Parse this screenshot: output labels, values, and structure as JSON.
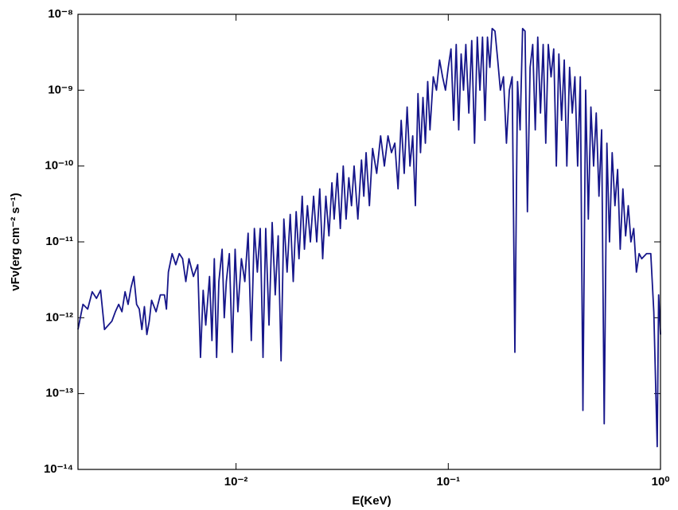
{
  "chart_data": {
    "type": "line",
    "xlabel": "E(KeV)",
    "ylabel": "νFν(erg cm⁻² s⁻¹)",
    "xscale": "log",
    "yscale": "log",
    "grid": false,
    "xlim": [
      0.0018,
      1.0
    ],
    "ylim": [
      1e-14,
      1e-08
    ],
    "xticks": [
      {
        "value": 0.01,
        "label": "10⁻²"
      },
      {
        "value": 0.1,
        "label": "10⁻¹"
      },
      {
        "value": 1,
        "label": "10⁰"
      }
    ],
    "yticks": [
      {
        "value": 1e-14,
        "label": "10⁻¹⁴"
      },
      {
        "value": 1e-13,
        "label": "10⁻¹³"
      },
      {
        "value": 1e-12,
        "label": "10⁻¹²"
      },
      {
        "value": 1e-11,
        "label": "10⁻¹¹"
      },
      {
        "value": 1e-10,
        "label": "10⁻¹⁰"
      },
      {
        "value": 1e-09,
        "label": "10⁻⁹"
      },
      {
        "value": 1e-08,
        "label": "10⁻⁸"
      }
    ],
    "x": [
      0.0018,
      0.0019,
      0.002,
      0.0021,
      0.0022,
      0.0023,
      0.0024,
      0.0026,
      0.0027,
      0.0028,
      0.0029,
      0.003,
      0.0031,
      0.0032,
      0.0033,
      0.0034,
      0.0035,
      0.0036,
      0.0037,
      0.0038,
      0.0039,
      0.004,
      0.0042,
      0.0044,
      0.0046,
      0.0047,
      0.0048,
      0.005,
      0.0052,
      0.0054,
      0.0056,
      0.0058,
      0.006,
      0.0063,
      0.0066,
      0.0068,
      0.007,
      0.0072,
      0.0075,
      0.0077,
      0.0079,
      0.0081,
      0.0083,
      0.0086,
      0.0088,
      0.009,
      0.0093,
      0.0096,
      0.0099,
      0.0102,
      0.0106,
      0.011,
      0.0114,
      0.0118,
      0.0122,
      0.0126,
      0.013,
      0.0134,
      0.0138,
      0.0143,
      0.0148,
      0.0153,
      0.0158,
      0.0163,
      0.0168,
      0.0174,
      0.018,
      0.0186,
      0.0192,
      0.0198,
      0.0205,
      0.021,
      0.0217,
      0.0224,
      0.0232,
      0.024,
      0.0248,
      0.0256,
      0.0265,
      0.0274,
      0.0283,
      0.029,
      0.03,
      0.031,
      0.032,
      0.033,
      0.034,
      0.035,
      0.036,
      0.0375,
      0.039,
      0.04,
      0.041,
      0.0425,
      0.044,
      0.046,
      0.048,
      0.05,
      0.052,
      0.054,
      0.056,
      0.058,
      0.06,
      0.062,
      0.064,
      0.066,
      0.068,
      0.07,
      0.072,
      0.074,
      0.076,
      0.078,
      0.08,
      0.082,
      0.085,
      0.088,
      0.091,
      0.094,
      0.097,
      0.1,
      0.103,
      0.106,
      0.109,
      0.112,
      0.115,
      0.118,
      0.121,
      0.125,
      0.129,
      0.133,
      0.137,
      0.141,
      0.145,
      0.149,
      0.153,
      0.157,
      0.161,
      0.166,
      0.171,
      0.176,
      0.182,
      0.188,
      0.194,
      0.2,
      0.206,
      0.212,
      0.218,
      0.224,
      0.23,
      0.236,
      0.243,
      0.25,
      0.257,
      0.264,
      0.272,
      0.28,
      0.288,
      0.296,
      0.305,
      0.314,
      0.323,
      0.332,
      0.342,
      0.352,
      0.362,
      0.373,
      0.384,
      0.395,
      0.407,
      0.419,
      0.431,
      0.444,
      0.457,
      0.47,
      0.484,
      0.498,
      0.513,
      0.528,
      0.543,
      0.559,
      0.575,
      0.592,
      0.61,
      0.628,
      0.646,
      0.665,
      0.685,
      0.705,
      0.726,
      0.748,
      0.77,
      0.793,
      0.816,
      0.86,
      0.9,
      0.93,
      0.965,
      0.98,
      1.0
    ],
    "series": [
      {
        "color": "#16168a",
        "values": [
          7e-13,
          1.5e-12,
          1.3e-12,
          2.2e-12,
          1.8e-12,
          2.3e-12,
          7e-13,
          9e-13,
          1.2e-12,
          1.5e-12,
          1.2e-12,
          2.2e-12,
          1.5e-12,
          2.5e-12,
          3.5e-12,
          1.5e-12,
          1.3e-12,
          7e-13,
          1.4e-12,
          6e-13,
          9e-13,
          1.7e-12,
          1.2e-12,
          2e-12,
          2e-12,
          1.3e-12,
          4e-12,
          7e-12,
          5e-12,
          7e-12,
          6e-12,
          3e-12,
          6e-12,
          3.5e-12,
          5e-12,
          3e-13,
          2.3e-12,
          8e-13,
          3.5e-12,
          5e-13,
          6e-12,
          3e-13,
          3e-12,
          8e-12,
          1e-12,
          3e-12,
          7e-12,
          3.5e-13,
          8e-12,
          1.2e-12,
          6e-12,
          3e-12,
          1.3e-11,
          5e-13,
          1.5e-11,
          4e-12,
          1.5e-11,
          3e-13,
          1.5e-11,
          8e-13,
          1.8e-11,
          2e-12,
          1.2e-11,
          2.7e-13,
          2e-11,
          4e-12,
          2.3e-11,
          3e-12,
          2.5e-11,
          6e-12,
          4e-11,
          8e-12,
          3e-11,
          1e-11,
          4e-11,
          1e-11,
          5e-11,
          6e-12,
          4e-11,
          1.2e-11,
          6e-11,
          2e-11,
          8e-11,
          1.5e-11,
          1e-10,
          2e-11,
          7e-11,
          3e-11,
          1e-10,
          2e-11,
          1.2e-10,
          4e-11,
          1.5e-10,
          3e-11,
          1.7e-10,
          8e-11,
          2.5e-10,
          1e-10,
          2.5e-10,
          1.5e-10,
          2e-10,
          5e-11,
          4e-10,
          8e-11,
          6e-10,
          1e-10,
          2.5e-10,
          3e-11,
          9e-10,
          1.5e-10,
          8e-10,
          2e-10,
          1.3e-09,
          3e-10,
          1.5e-09,
          1e-09,
          2.5e-09,
          1.5e-09,
          1e-09,
          2e-09,
          3.5e-09,
          4e-10,
          4e-09,
          3e-10,
          3e-09,
          1e-09,
          4e-09,
          5e-10,
          4.5e-09,
          2e-10,
          5e-09,
          1e-09,
          5e-09,
          4e-10,
          5e-09,
          2e-09,
          6.5e-09,
          6e-09,
          2.5e-09,
          1e-09,
          1.5e-09,
          2e-10,
          1e-09,
          1.5e-09,
          3.5e-13,
          1.3e-09,
          3e-10,
          6.5e-09,
          6e-09,
          2.5e-11,
          2e-09,
          4e-09,
          3e-10,
          5e-09,
          5e-10,
          4e-09,
          2e-10,
          4e-09,
          1.5e-09,
          3.5e-09,
          1e-10,
          3e-09,
          4e-10,
          2.5e-09,
          1e-10,
          2e-09,
          5e-10,
          1.5e-09,
          1e-10,
          1.5e-09,
          6e-14,
          1e-09,
          2e-11,
          6e-10,
          1e-10,
          5e-10,
          4e-11,
          3e-10,
          4e-14,
          2e-10,
          1e-11,
          1.5e-10,
          3e-11,
          9e-11,
          8e-12,
          5e-11,
          1.2e-11,
          3e-11,
          1e-11,
          1.5e-11,
          4e-12,
          7e-12,
          6e-12,
          7e-12,
          7e-12,
          1.2e-12,
          2e-14,
          2e-12,
          6e-13
        ]
      }
    ]
  }
}
